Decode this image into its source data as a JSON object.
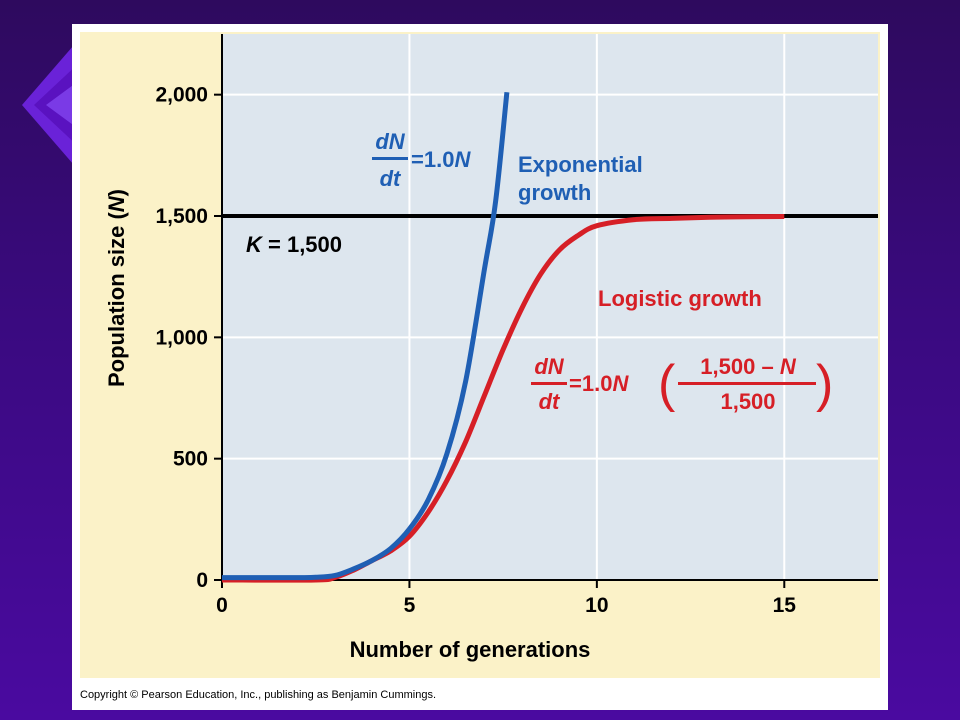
{
  "slide": {
    "background_color": "#3a0a80",
    "decoration": "purple-diamond-arrows"
  },
  "copyright": "Copyright © Pearson Education, Inc., publishing as Benjamin Cummings.",
  "chart_data": {
    "type": "line",
    "xlabel": "Number of generations",
    "ylabel_prefix": "Population size (",
    "ylabel_var": "N",
    "ylabel_suffix": ")",
    "xlim": [
      0,
      17.5
    ],
    "ylim": [
      0,
      2250
    ],
    "x_ticks": [
      0,
      5,
      10,
      15
    ],
    "x_tick_labels": [
      "0",
      "5",
      "10",
      "15"
    ],
    "y_ticks": [
      0,
      500,
      1000,
      1500,
      2000
    ],
    "y_tick_labels": [
      "0",
      "500",
      "1,000",
      "1,500",
      "2,000"
    ],
    "grid": true,
    "colors": {
      "plot_bg": "#dde6ee",
      "panel_bg": "#fbf2c8",
      "grid": "#ffffff",
      "exponential": "#1f5fb4",
      "logistic": "#d61f26",
      "capacity": "#000000"
    },
    "carrying_capacity": {
      "value": 1500,
      "label_var": "K",
      "label_rest": " = 1,500"
    },
    "series": [
      {
        "key": "exponential",
        "x": [
          0,
          1,
          2,
          2.5,
          3,
          3.5,
          4,
          4.5,
          5,
          5.5,
          6,
          6.5,
          7,
          7.3,
          7.6
        ],
        "y": [
          10,
          10,
          10,
          11,
          18,
          45,
          80,
          130,
          210,
          330,
          520,
          820,
          1280,
          1560,
          2010
        ]
      },
      {
        "key": "logistic",
        "x": [
          0,
          2.5,
          3,
          3.5,
          4,
          4.5,
          5,
          5.5,
          6,
          6.5,
          7,
          7.5,
          8,
          8.5,
          9,
          9.5,
          10,
          11,
          12,
          13,
          14,
          15
        ],
        "y": [
          0,
          0,
          10,
          40,
          80,
          120,
          180,
          280,
          410,
          570,
          760,
          950,
          1120,
          1260,
          1360,
          1420,
          1460,
          1485,
          1490,
          1495,
          1497,
          1498
        ]
      }
    ],
    "annotations": {
      "exponential_label": [
        "Exponential",
        "growth"
      ],
      "exponential_eq": {
        "num": "dN",
        "den": "dt",
        "rhs_prefix": "=1.0",
        "rhs_var": "N"
      },
      "logistic_label": "Logistic growth",
      "logistic_eq": {
        "num": "dN",
        "den": "dt",
        "rhs_prefix": "=1.0",
        "rhs_var": "N",
        "frac_num_prefix": "1,500 – ",
        "frac_num_var": "N",
        "frac_den": "1,500",
        "lparen": "(",
        "rparen": ")"
      }
    }
  }
}
